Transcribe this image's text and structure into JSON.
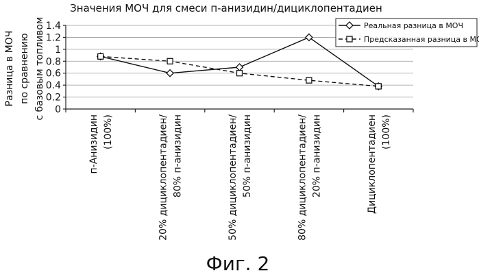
{
  "chart_data": {
    "type": "line",
    "title": "Значения МОЧ для смеси п-анизидин/дициклопентадиен",
    "ylabel": [
      "Разница в МОЧ",
      "по сравнению",
      "с базовым топливом"
    ],
    "xlabel": "",
    "ylim": [
      0,
      1.4
    ],
    "yticks": [
      "0",
      "0.2",
      "0.4",
      "0.6",
      "0.8",
      "1",
      "1.2",
      "1.4"
    ],
    "grid": true,
    "legend_position": "top-right",
    "categories": [
      [
        "п-Анизидин",
        "(100%)"
      ],
      [
        "20% дициклопентадиен/",
        "80% п-анизидин"
      ],
      [
        "50% дициклопентадиен/",
        "50% п-анизидин"
      ],
      [
        "80% дициклопентадиен/",
        "20% п-анизидин"
      ],
      [
        "Дициклопентадиен",
        "(100%)"
      ]
    ],
    "series": [
      {
        "name": "Реальная разница в МОЧ",
        "values": [
          0.88,
          0.6,
          0.7,
          1.2,
          0.38
        ],
        "marker": "diamond",
        "line": "solid"
      },
      {
        "name": "Предсказанная разница в МОЧ",
        "values": [
          0.88,
          0.8,
          0.6,
          0.48,
          0.38
        ],
        "marker": "square",
        "line": "dashed"
      }
    ]
  },
  "caption": "Фиг. 2"
}
